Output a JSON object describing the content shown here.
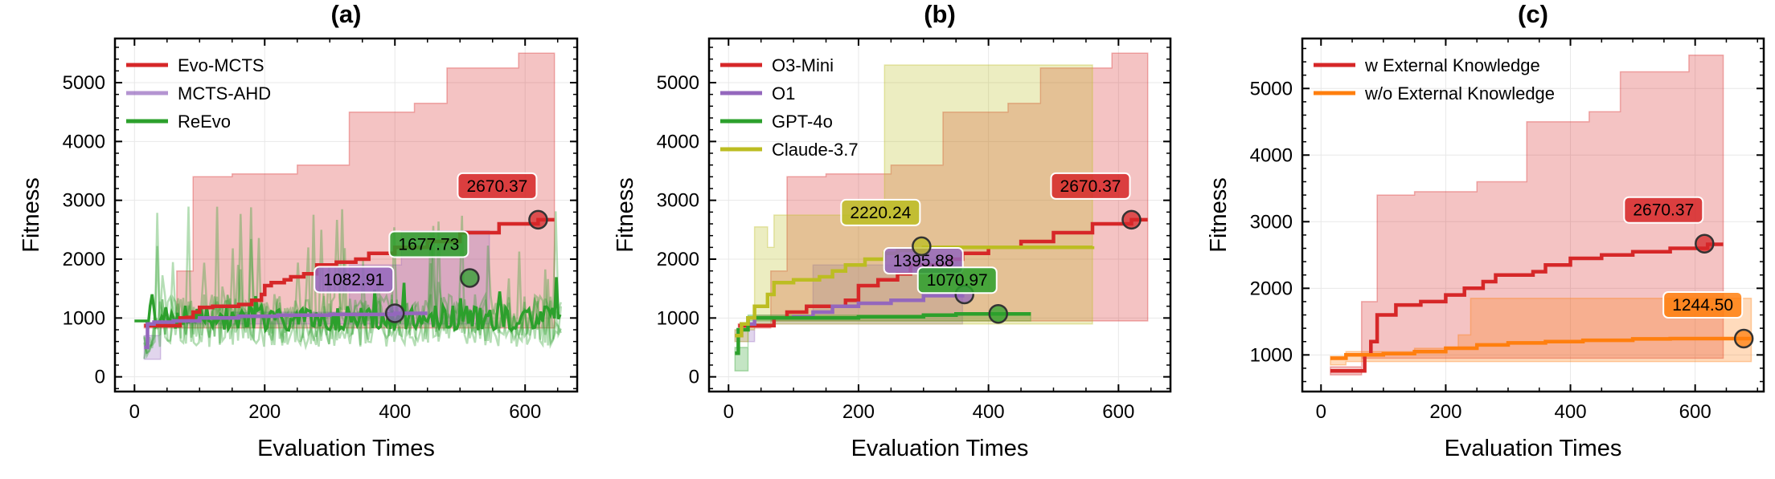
{
  "colors": {
    "red": "#d62728",
    "purple": "#9467bd",
    "green": "#2ca02c",
    "olive": "#bcbd22",
    "orange": "#ff7f0e"
  },
  "chart_data": [
    {
      "type": "line",
      "title": "(a)",
      "xlabel": "Evaluation Times",
      "ylabel": "Fitness",
      "xlim": [
        -30,
        680
      ],
      "ylim": [
        -250,
        5750
      ],
      "xticks": [
        0,
        200,
        400,
        600
      ],
      "yticks": [
        0,
        1000,
        2000,
        3000,
        4000,
        5000
      ],
      "legend_position": "top-left",
      "series": [
        {
          "name": "Evo-MCTS",
          "color": "#d62728",
          "style": "step",
          "mean": [
            [
              15,
              870
            ],
            [
              70,
              870
            ],
            [
              70,
              1000
            ],
            [
              80,
              1010
            ],
            [
              90,
              1100
            ],
            [
              100,
              1180
            ],
            [
              120,
              1200
            ],
            [
              160,
              1230
            ],
            [
              180,
              1300
            ],
            [
              195,
              1400
            ],
            [
              200,
              1550
            ],
            [
              210,
              1600
            ],
            [
              230,
              1650
            ],
            [
              240,
              1700
            ],
            [
              260,
              1750
            ],
            [
              280,
              1900
            ],
            [
              310,
              1950
            ],
            [
              340,
              2000
            ],
            [
              360,
              2100
            ],
            [
              400,
              2200
            ],
            [
              450,
              2300
            ],
            [
              500,
              2450
            ],
            [
              560,
              2600
            ],
            [
              620,
              2670
            ],
            [
              645,
              2670
            ]
          ],
          "band_upper": [
            [
              15,
              900
            ],
            [
              65,
              900
            ],
            [
              65,
              1800
            ],
            [
              90,
              1800
            ],
            [
              90,
              3400
            ],
            [
              150,
              3400
            ],
            [
              150,
              3450
            ],
            [
              250,
              3450
            ],
            [
              250,
              3600
            ],
            [
              330,
              3600
            ],
            [
              330,
              4500
            ],
            [
              430,
              4500
            ],
            [
              430,
              4650
            ],
            [
              480,
              4650
            ],
            [
              480,
              5250
            ],
            [
              590,
              5250
            ],
            [
              590,
              5500
            ],
            [
              645,
              5500
            ]
          ],
          "band_lower": [
            [
              15,
              830
            ],
            [
              645,
              830
            ]
          ],
          "highlight": {
            "x": 620,
            "y": 2670,
            "label": "2670.37"
          }
        },
        {
          "name": "MCTS-AHD",
          "color": "#9467bd",
          "style": "step",
          "mean": [
            [
              15,
              500
            ],
            [
              20,
              900
            ],
            [
              30,
              930
            ],
            [
              60,
              950
            ],
            [
              100,
              1000
            ],
            [
              160,
              1030
            ],
            [
              220,
              1050
            ],
            [
              300,
              1060
            ],
            [
              400,
              1080
            ],
            [
              450,
              1080
            ]
          ],
          "band_upper": [
            [
              15,
              700
            ],
            [
              40,
              1000
            ],
            [
              150,
              1000
            ],
            [
              150,
              1100
            ],
            [
              330,
              1100
            ],
            [
              330,
              1900
            ],
            [
              410,
              1900
            ],
            [
              410,
              2480
            ],
            [
              545,
              2480
            ]
          ],
          "band_lower": [
            [
              15,
              300
            ],
            [
              40,
              900
            ],
            [
              545,
              900
            ]
          ],
          "highlight": {
            "x": 400,
            "y": 1080,
            "label": "1082.91"
          }
        },
        {
          "name": "ReEvo",
          "color": "#2ca02c",
          "style": "noisy",
          "mean_level": 1000,
          "highlight": {
            "x": 515,
            "y": 1680,
            "label": "1677.73"
          }
        }
      ]
    },
    {
      "type": "line",
      "title": "(b)",
      "xlabel": "Evaluation Times",
      "ylabel": "Fitness",
      "xlim": [
        -30,
        680
      ],
      "ylim": [
        -250,
        5750
      ],
      "xticks": [
        0,
        200,
        400,
        600
      ],
      "yticks": [
        0,
        1000,
        2000,
        3000,
        4000,
        5000
      ],
      "legend_position": "top-left",
      "series": [
        {
          "name": "O3-Mini",
          "color": "#d62728",
          "style": "step",
          "mean": [
            [
              15,
              870
            ],
            [
              70,
              870
            ],
            [
              70,
              1000
            ],
            [
              90,
              1100
            ],
            [
              120,
              1200
            ],
            [
              180,
              1300
            ],
            [
              200,
              1550
            ],
            [
              230,
              1650
            ],
            [
              260,
              1750
            ],
            [
              280,
              1900
            ],
            [
              340,
              2000
            ],
            [
              360,
              2100
            ],
            [
              400,
              2200
            ],
            [
              450,
              2300
            ],
            [
              500,
              2450
            ],
            [
              560,
              2600
            ],
            [
              620,
              2670
            ],
            [
              645,
              2670
            ]
          ],
          "band_upper": [
            [
              15,
              900
            ],
            [
              65,
              900
            ],
            [
              65,
              1800
            ],
            [
              90,
              1800
            ],
            [
              90,
              3400
            ],
            [
              150,
              3400
            ],
            [
              150,
              3450
            ],
            [
              250,
              3450
            ],
            [
              250,
              3600
            ],
            [
              330,
              3600
            ],
            [
              330,
              4500
            ],
            [
              430,
              4500
            ],
            [
              430,
              4650
            ],
            [
              480,
              4650
            ],
            [
              480,
              5250
            ],
            [
              590,
              5250
            ],
            [
              590,
              5500
            ],
            [
              645,
              5500
            ]
          ],
          "band_lower": [
            [
              15,
              830
            ],
            [
              65,
              830
            ],
            [
              65,
              950
            ],
            [
              645,
              950
            ]
          ],
          "highlight": {
            "x": 620,
            "y": 2670,
            "label": "2670.37"
          }
        },
        {
          "name": "O1",
          "color": "#9467bd",
          "style": "step",
          "mean": [
            [
              10,
              700
            ],
            [
              20,
              900
            ],
            [
              40,
              1000
            ],
            [
              100,
              1020
            ],
            [
              130,
              1100
            ],
            [
              160,
              1200
            ],
            [
              200,
              1250
            ],
            [
              250,
              1300
            ],
            [
              300,
              1380
            ],
            [
              360,
              1400
            ]
          ],
          "band_upper": [
            [
              10,
              800
            ],
            [
              40,
              1050
            ],
            [
              130,
              1050
            ],
            [
              130,
              1900
            ],
            [
              260,
              1900
            ],
            [
              260,
              2000
            ],
            [
              360,
              2000
            ]
          ],
          "band_lower": [
            [
              10,
              600
            ],
            [
              40,
              900
            ],
            [
              360,
              900
            ]
          ],
          "highlight": {
            "x": 363,
            "y": 1400,
            "label": "1395.88"
          }
        },
        {
          "name": "GPT-4o",
          "color": "#2ca02c",
          "style": "step",
          "mean": [
            [
              10,
              400
            ],
            [
              15,
              800
            ],
            [
              30,
              1000
            ],
            [
              100,
              1000
            ],
            [
              200,
              1020
            ],
            [
              300,
              1050
            ],
            [
              350,
              1070
            ],
            [
              465,
              1070
            ]
          ],
          "band_upper": [
            [
              10,
              500
            ],
            [
              30,
              1050
            ],
            [
              465,
              1100
            ]
          ],
          "band_lower": [
            [
              10,
              100
            ],
            [
              30,
              950
            ],
            [
              465,
              1000
            ]
          ],
          "highlight": {
            "x": 415,
            "y": 1070,
            "label": "1070.97"
          }
        },
        {
          "name": "Claude-3.7",
          "color": "#bcbd22",
          "style": "step",
          "mean": [
            [
              10,
              700
            ],
            [
              20,
              900
            ],
            [
              30,
              1000
            ],
            [
              40,
              1200
            ],
            [
              60,
              1400
            ],
            [
              70,
              1600
            ],
            [
              100,
              1650
            ],
            [
              140,
              1700
            ],
            [
              160,
              1800
            ],
            [
              180,
              1900
            ],
            [
              210,
              2000
            ],
            [
              240,
              2100
            ],
            [
              260,
              2150
            ],
            [
              300,
              2200
            ],
            [
              560,
              2220
            ]
          ],
          "band_upper": [
            [
              10,
              800
            ],
            [
              40,
              1200
            ],
            [
              40,
              2550
            ],
            [
              60,
              2550
            ],
            [
              60,
              2200
            ],
            [
              70,
              2200
            ],
            [
              70,
              2750
            ],
            [
              240,
              2750
            ],
            [
              240,
              5300
            ],
            [
              560,
              5300
            ]
          ],
          "band_lower": [
            [
              10,
              600
            ],
            [
              30,
              900
            ],
            [
              560,
              950
            ]
          ],
          "highlight": {
            "x": 297,
            "y": 2220,
            "label": "2220.24"
          }
        }
      ]
    },
    {
      "type": "line",
      "title": "(c)",
      "xlabel": "Evaluation Times",
      "ylabel": "Fitness",
      "xlim": [
        -30,
        710
      ],
      "ylim": [
        450,
        5750
      ],
      "xticks": [
        0,
        200,
        400,
        600
      ],
      "yticks": [
        1000,
        2000,
        3000,
        4000,
        5000
      ],
      "legend_position": "top-left",
      "series": [
        {
          "name": "w External Knowledge",
          "color": "#d62728",
          "style": "step",
          "mean": [
            [
              15,
              760
            ],
            [
              70,
              870
            ],
            [
              70,
              1000
            ],
            [
              80,
              1200
            ],
            [
              90,
              1600
            ],
            [
              120,
              1750
            ],
            [
              160,
              1800
            ],
            [
              200,
              1900
            ],
            [
              230,
              2000
            ],
            [
              260,
              2100
            ],
            [
              280,
              2200
            ],
            [
              340,
              2250
            ],
            [
              360,
              2350
            ],
            [
              400,
              2450
            ],
            [
              450,
              2500
            ],
            [
              500,
              2550
            ],
            [
              560,
              2600
            ],
            [
              620,
              2660
            ],
            [
              645,
              2660
            ]
          ],
          "band_upper": [
            [
              15,
              820
            ],
            [
              65,
              820
            ],
            [
              65,
              1800
            ],
            [
              90,
              1800
            ],
            [
              90,
              3400
            ],
            [
              150,
              3400
            ],
            [
              150,
              3450
            ],
            [
              250,
              3450
            ],
            [
              250,
              3600
            ],
            [
              330,
              3600
            ],
            [
              330,
              4500
            ],
            [
              430,
              4500
            ],
            [
              430,
              4650
            ],
            [
              480,
              4650
            ],
            [
              480,
              5250
            ],
            [
              590,
              5250
            ],
            [
              590,
              5500
            ],
            [
              645,
              5500
            ]
          ],
          "band_lower": [
            [
              15,
              700
            ],
            [
              65,
              700
            ],
            [
              65,
              950
            ],
            [
              645,
              950
            ]
          ],
          "highlight": {
            "x": 615,
            "y": 2670,
            "label": "2670.37"
          }
        },
        {
          "name": "w/o External Knowledge",
          "color": "#ff7f0e",
          "style": "step",
          "mean": [
            [
              15,
              950
            ],
            [
              40,
              1000
            ],
            [
              100,
              1020
            ],
            [
              150,
              1050
            ],
            [
              200,
              1100
            ],
            [
              250,
              1150
            ],
            [
              300,
              1180
            ],
            [
              360,
              1200
            ],
            [
              420,
              1220
            ],
            [
              500,
              1240
            ],
            [
              560,
              1245
            ],
            [
              690,
              1245
            ]
          ],
          "band_upper": [
            [
              15,
              980
            ],
            [
              40,
              1050
            ],
            [
              150,
              1100
            ],
            [
              220,
              1300
            ],
            [
              240,
              1500
            ],
            [
              240,
              1850
            ],
            [
              690,
              1850
            ]
          ],
          "band_lower": [
            [
              15,
              850
            ],
            [
              40,
              900
            ],
            [
              690,
              1000
            ]
          ],
          "highlight": {
            "x": 678,
            "y": 1245,
            "label": "1244.50"
          }
        }
      ]
    }
  ]
}
